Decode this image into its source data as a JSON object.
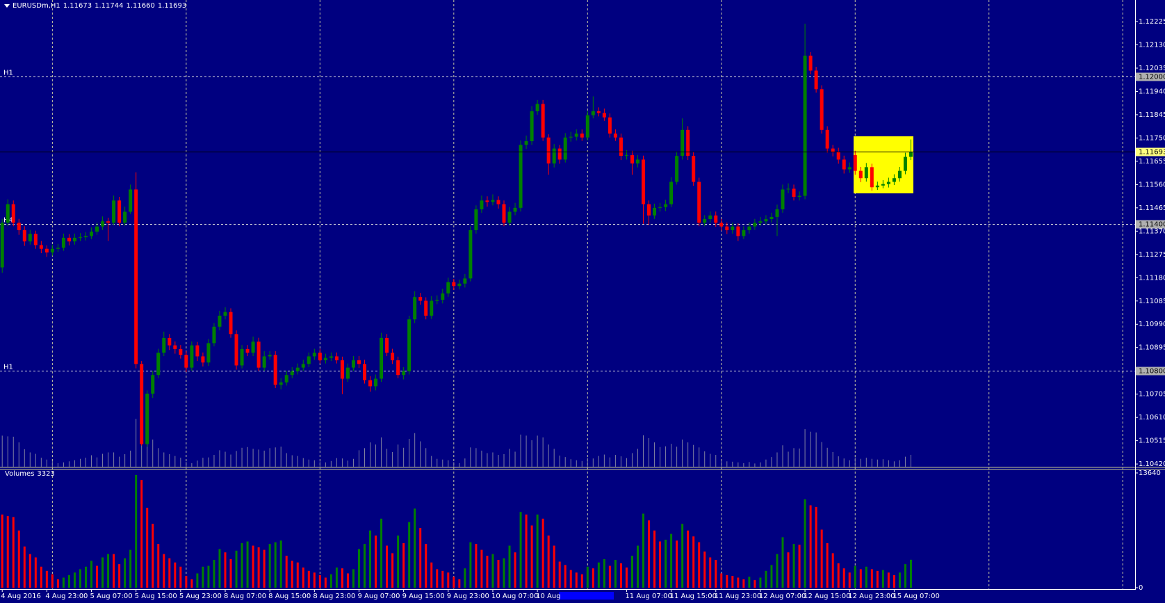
{
  "chart_data": [
    {
      "type": "candlestick",
      "symbol": "EURUSDm,H1",
      "quote": [
        "1.11673",
        "1.11744",
        "1.11660",
        "1.11693"
      ],
      "categories": [
        "4 Aug 2016",
        null,
        null,
        null,
        null,
        null,
        null,
        null,
        "4 Aug 23:00",
        null,
        null,
        null,
        null,
        null,
        null,
        null,
        "5 Aug 07:00",
        null,
        null,
        null,
        null,
        null,
        null,
        null,
        "5 Aug 15:00",
        null,
        null,
        null,
        null,
        null,
        null,
        null,
        "5 Aug 23:00",
        null,
        null,
        null,
        null,
        null,
        null,
        null,
        "8 Aug 07:00",
        null,
        null,
        null,
        null,
        null,
        null,
        null,
        "8 Aug 15:00",
        null,
        null,
        null,
        null,
        null,
        null,
        null,
        "8 Aug 23:00",
        null,
        null,
        null,
        null,
        null,
        null,
        null,
        "9 Aug 07:00",
        null,
        null,
        null,
        null,
        null,
        null,
        null,
        "9 Aug 15:00",
        null,
        null,
        null,
        null,
        null,
        null,
        null,
        "9 Aug 23:00",
        null,
        null,
        null,
        null,
        null,
        null,
        null,
        "10 Aug 07:00",
        null,
        null,
        null,
        null,
        null,
        null,
        null,
        "10 Aug",
        null,
        null,
        null,
        null,
        null,
        null,
        null,
        null,
        null,
        null,
        null,
        null,
        null,
        null,
        null,
        "11 Aug 07:00",
        null,
        null,
        null,
        null,
        null,
        null,
        null,
        "11 Aug 15:00",
        null,
        null,
        null,
        null,
        null,
        null,
        null,
        "11 Aug 23:00",
        null,
        null,
        null,
        null,
        null,
        null,
        null,
        "12 Aug 07:00",
        null,
        null,
        null,
        null,
        null,
        null,
        null,
        "12 Aug 15:00",
        null,
        null,
        null,
        null,
        null,
        null,
        null,
        "12 Aug 23:00",
        null,
        null,
        null,
        null,
        null,
        null,
        null,
        "15 Aug 07:00",
        null,
        null,
        null
      ],
      "open": [
        1.11222,
        1.11404,
        1.1148,
        1.11404,
        1.11374,
        1.11328,
        1.11359,
        1.11313,
        1.11298,
        1.11283,
        1.11298,
        1.11302,
        1.11343,
        1.11328,
        1.11343,
        1.11345,
        1.1135,
        1.11368,
        1.11389,
        1.1141,
        1.11404,
        1.11495,
        1.11404,
        1.11449,
        1.1154,
        1.10828,
        1.10501,
        1.10707,
        1.10783,
        1.10874,
        1.10934,
        1.10904,
        1.10889,
        1.10865,
        1.10813,
        1.10904,
        1.10859,
        1.10834,
        1.10913,
        1.1098,
        1.11025,
        1.1104,
        1.1095,
        1.10822,
        1.10889,
        1.10874,
        1.10919,
        1.10813,
        1.10859,
        1.10865,
        1.10743,
        1.10753,
        1.10783,
        1.10798,
        1.10813,
        1.10828,
        1.10859,
        1.10874,
        1.10843,
        1.10853,
        1.10859,
        1.10843,
        1.10768,
        1.10813,
        1.10843,
        1.10828,
        1.10762,
        1.10737,
        1.10768,
        1.10934,
        1.10874,
        1.10843,
        1.10783,
        1.10798,
        1.1101,
        1.11101,
        1.11086,
        1.11025,
        1.11086,
        1.1109,
        1.11116,
        1.11162,
        1.11146,
        1.11156,
        1.11177,
        1.11374,
        1.11459,
        1.11495,
        1.11489,
        1.11497,
        1.1148,
        1.11404,
        1.11449,
        1.11465,
        1.11722,
        1.11737,
        1.11859,
        1.11889,
        1.11752,
        1.11646,
        1.11707,
        1.11662,
        1.11752,
        1.11755,
        1.11768,
        1.11752,
        1.11843,
        1.11859,
        1.11852,
        1.11834,
        1.11768,
        1.11752,
        1.11677,
        1.1168,
        1.11646,
        1.11662,
        1.1148,
        1.11434,
        1.11465,
        1.11468,
        1.1148,
        1.11571,
        1.11677,
        1.11783,
        1.11677,
        1.11571,
        1.11404,
        1.11419,
        1.11434,
        1.11404,
        1.11389,
        1.11374,
        1.11389,
        1.1135,
        1.11374,
        1.11389,
        1.11404,
        1.1141,
        1.11419,
        1.11428,
        1.11459,
        1.1154,
        1.11543,
        1.1151,
        1.11514,
        1.12086,
        1.12025,
        1.11949,
        1.11783,
        1.11707,
        1.11692,
        1.11662,
        1.11622,
        1.1168,
        1.11616,
        1.11586,
        1.11631,
        1.11549,
        1.11556,
        1.11562,
        1.11571,
        1.11586,
        1.11616,
        1.11673
      ],
      "high": [
        1.1142,
        1.115,
        1.11495,
        1.1142,
        1.1139,
        1.11375,
        1.11372,
        1.1133,
        1.11312,
        1.11315,
        1.11318,
        1.1136,
        1.11358,
        1.1136,
        1.11362,
        1.11366,
        1.11385,
        1.11405,
        1.1143,
        1.11425,
        1.11515,
        1.1151,
        1.1147,
        1.1156,
        1.1161,
        1.1084,
        1.1072,
        1.108,
        1.1089,
        1.1096,
        1.1095,
        1.1092,
        1.10905,
        1.1088,
        1.1092,
        1.10918,
        1.10875,
        1.1093,
        1.10995,
        1.11045,
        1.1106,
        1.11055,
        1.10965,
        1.10905,
        1.10905,
        1.1094,
        1.10935,
        1.1088,
        1.1088,
        1.1088,
        1.1077,
        1.108,
        1.10815,
        1.1083,
        1.10845,
        1.10875,
        1.1089,
        1.1089,
        1.1087,
        1.10875,
        1.10875,
        1.10858,
        1.1083,
        1.1086,
        1.1086,
        1.10845,
        1.10778,
        1.10785,
        1.10955,
        1.1095,
        1.1089,
        1.10858,
        1.10815,
        1.11025,
        1.11125,
        1.11118,
        1.111,
        1.11105,
        1.11108,
        1.11135,
        1.1118,
        1.11175,
        1.11172,
        1.11195,
        1.1139,
        1.11475,
        1.11515,
        1.11512,
        1.1152,
        1.11512,
        1.11495,
        1.11468,
        1.11485,
        1.1174,
        1.1176,
        1.1188,
        1.11905,
        1.11905,
        1.11765,
        1.11725,
        1.11722,
        1.1177,
        1.11775,
        1.11785,
        1.11785,
        1.1186,
        1.1192,
        1.11875,
        1.1187,
        1.1185,
        1.11785,
        1.11768,
        1.117,
        1.11698,
        1.1168,
        1.11678,
        1.11495,
        1.11482,
        1.11485,
        1.11498,
        1.1159,
        1.11695,
        1.1183,
        1.11798,
        1.11692,
        1.11588,
        1.11435,
        1.1145,
        1.1145,
        1.1142,
        1.11405,
        1.11405,
        1.11402,
        1.1139,
        1.11405,
        1.1142,
        1.11428,
        1.11435,
        1.11445,
        1.11478,
        1.1156,
        1.11565,
        1.1156,
        1.11532,
        1.12216,
        1.121,
        1.1204,
        1.11965,
        1.11798,
        1.11722,
        1.1171,
        1.11678,
        1.1165,
        1.11698,
        1.11632,
        1.11648,
        1.11645,
        1.11572,
        1.11578,
        1.11588,
        1.11602,
        1.11632,
        1.1169,
        1.11744
      ],
      "low": [
        1.112,
        1.1139,
        1.1139,
        1.11355,
        1.1131,
        1.11315,
        1.11298,
        1.1128,
        1.11265,
        1.1127,
        1.11285,
        1.1129,
        1.11312,
        1.11315,
        1.1133,
        1.11332,
        1.11338,
        1.11355,
        1.11375,
        1.1133,
        1.11395,
        1.1139,
        1.11392,
        1.1144,
        1.1081,
        1.10495,
        1.1049,
        1.1069,
        1.1077,
        1.1086,
        1.10885,
        1.1087,
        1.1085,
        1.10795,
        1.108,
        1.1084,
        1.10818,
        1.1082,
        1.109,
        1.10965,
        1.1101,
        1.10935,
        1.10805,
        1.1081,
        1.1086,
        1.1086,
        1.108,
        1.108,
        1.10845,
        1.1073,
        1.10725,
        1.1074,
        1.1077,
        1.10785,
        1.108,
        1.10815,
        1.10845,
        1.1083,
        1.1083,
        1.1084,
        1.1083,
        1.10705,
        1.10755,
        1.108,
        1.10812,
        1.10748,
        1.10715,
        1.1072,
        1.10755,
        1.1086,
        1.10828,
        1.1077,
        1.10765,
        1.10785,
        1.10995,
        1.1107,
        1.1101,
        1.11012,
        1.11072,
        1.11075,
        1.11102,
        1.1113,
        1.11132,
        1.1114,
        1.11165,
        1.1136,
        1.11445,
        1.1147,
        1.11475,
        1.11462,
        1.1139,
        1.11392,
        1.11435,
        1.1145,
        1.11705,
        1.11722,
        1.11845,
        1.11738,
        1.116,
        1.1163,
        1.11645,
        1.1165,
        1.11735,
        1.1174,
        1.11738,
        1.1174,
        1.1183,
        1.11838,
        1.1182,
        1.11752,
        1.11738,
        1.1166,
        1.11662,
        1.116,
        1.1163,
        1.114,
        1.11395,
        1.1142,
        1.1145,
        1.11452,
        1.11468,
        1.1156,
        1.11662,
        1.1166,
        1.11555,
        1.1139,
        1.1139,
        1.11405,
        1.11388,
        1.11372,
        1.11358,
        1.1136,
        1.1133,
        1.11338,
        1.1136,
        1.11375,
        1.11392,
        1.11398,
        1.11405,
        1.1135,
        1.11445,
        1.11525,
        1.11495,
        1.11495,
        1.115,
        1.1201,
        1.11935,
        1.11768,
        1.1169,
        1.11675,
        1.11645,
        1.11605,
        1.11608,
        1.116,
        1.1157,
        1.11572,
        1.11535,
        1.11538,
        1.11545,
        1.11548,
        1.11558,
        1.11572,
        1.11602,
        1.1166
      ],
      "close": [
        1.11404,
        1.1148,
        1.11404,
        1.11374,
        1.11328,
        1.11359,
        1.11313,
        1.11298,
        1.11283,
        1.11298,
        1.11302,
        1.11343,
        1.11328,
        1.11343,
        1.11345,
        1.1135,
        1.11368,
        1.11389,
        1.1141,
        1.11404,
        1.11495,
        1.11404,
        1.11449,
        1.1154,
        1.10828,
        1.10501,
        1.10707,
        1.10783,
        1.10874,
        1.10934,
        1.10904,
        1.10889,
        1.10865,
        1.10813,
        1.10904,
        1.10859,
        1.10834,
        1.10913,
        1.1098,
        1.11025,
        1.1104,
        1.1095,
        1.10822,
        1.10889,
        1.10874,
        1.10919,
        1.10813,
        1.10859,
        1.10865,
        1.10743,
        1.10753,
        1.10783,
        1.10798,
        1.10813,
        1.10828,
        1.10859,
        1.10874,
        1.10843,
        1.10853,
        1.10859,
        1.10843,
        1.10768,
        1.10813,
        1.10843,
        1.10828,
        1.10762,
        1.10737,
        1.10768,
        1.10934,
        1.10874,
        1.10843,
        1.10783,
        1.10798,
        1.1101,
        1.11101,
        1.11086,
        1.11025,
        1.11086,
        1.1109,
        1.11116,
        1.11162,
        1.11146,
        1.11156,
        1.11177,
        1.11374,
        1.11459,
        1.11495,
        1.11489,
        1.11497,
        1.1148,
        1.11404,
        1.11449,
        1.11465,
        1.11722,
        1.11737,
        1.11859,
        1.11889,
        1.11752,
        1.11646,
        1.11707,
        1.11662,
        1.11752,
        1.11755,
        1.11768,
        1.11752,
        1.11843,
        1.11859,
        1.11852,
        1.11834,
        1.11768,
        1.11752,
        1.11677,
        1.1168,
        1.11646,
        1.11662,
        1.1148,
        1.11434,
        1.11465,
        1.11468,
        1.1148,
        1.11571,
        1.11677,
        1.11783,
        1.11677,
        1.11571,
        1.11404,
        1.11419,
        1.11434,
        1.11404,
        1.11389,
        1.11374,
        1.11389,
        1.1135,
        1.11374,
        1.11389,
        1.11404,
        1.1141,
        1.11419,
        1.11428,
        1.11459,
        1.1154,
        1.11543,
        1.1151,
        1.11514,
        1.12086,
        1.12025,
        1.11949,
        1.11783,
        1.11707,
        1.11692,
        1.11662,
        1.11622,
        1.11631,
        1.11616,
        1.11586,
        1.11631,
        1.11549,
        1.11556,
        1.11562,
        1.11571,
        1.11586,
        1.11616,
        1.11673,
        1.11693
      ],
      "up_color": "#008000",
      "down_color": "#ff0000",
      "ylim": [
        1.10409,
        1.12313
      ],
      "yticks": [
        1.12225,
        {
          "value": 1.1213,
          "label": "1.12130"
        },
        1.12035,
        {
          "value": 1.1194,
          "label": "1.11940"
        },
        1.11845,
        {
          "value": 1.1175,
          "label": "1.11750"
        },
        1.11655,
        {
          "value": 1.1156,
          "label": "1.11560"
        },
        1.11465,
        {
          "value": 1.1137,
          "label": "1.11370"
        },
        1.11275,
        {
          "value": 1.1118,
          "label": "1.11180"
        },
        1.11085,
        {
          "value": 1.1099,
          "label": "1.10990"
        },
        1.10895,
        1.10705,
        {
          "value": 1.1061,
          "label": "1.10610"
        },
        1.10515,
        {
          "value": 1.1042,
          "label": "1.10420"
        }
      ],
      "levels": [
        {
          "name": "H1",
          "value": 1.12,
          "label": "1.12000"
        },
        {
          "name": "H4",
          "value": 1.114,
          "label": "1.11400"
        },
        {
          "name": "H1",
          "value": 1.108,
          "label": "1.10800"
        }
      ],
      "grid": true
    },
    {
      "type": "volume",
      "title": "Volumes",
      "values": [
        8700,
        8500,
        8400,
        6800,
        4900,
        4000,
        3600,
        2500,
        2000,
        1600,
        1000,
        1200,
        1500,
        1800,
        2200,
        2500,
        3200,
        2600,
        3600,
        4000,
        4000,
        2800,
        3500,
        4500,
        13400,
        12800,
        9500,
        7600,
        5200,
        4000,
        3500,
        3000,
        2500,
        1400,
        1000,
        1700,
        2500,
        2600,
        3300,
        4600,
        4200,
        3400,
        4400,
        5300,
        5500,
        5000,
        4800,
        4500,
        5200,
        5400,
        5600,
        3800,
        3200,
        3000,
        2400,
        2000,
        1800,
        1500,
        1200,
        1600,
        2400,
        2300,
        1700,
        2200,
        4600,
        5200,
        6800,
        6200,
        8200,
        5000,
        4100,
        6200,
        5300,
        7800,
        9400,
        7100,
        5200,
        3000,
        2200,
        2000,
        1800,
        1300,
        1000,
        2300,
        5400,
        5200,
        4500,
        3800,
        4000,
        3300,
        3500,
        5000,
        4200,
        9000,
        8700,
        7400,
        8700,
        8200,
        6200,
        5000,
        3100,
        2700,
        2100,
        1800,
        1600,
        2500,
        2300,
        3000,
        3400,
        2600,
        3300,
        2900,
        2400,
        3800,
        5000,
        8800,
        8000,
        6800,
        5500,
        5700,
        6400,
        5600,
        7600,
        6800,
        6100,
        5400,
        4300,
        3600,
        3300,
        1700,
        1500,
        1400,
        1200,
        1000,
        1300,
        900,
        1200,
        2000,
        2700,
        4000,
        6000,
        4200,
        5200,
        5100,
        10500,
        9800,
        9600,
        6900,
        5300,
        4100,
        2900,
        2300,
        1800,
        2600,
        2200,
        2500,
        2200,
        2000,
        2100,
        1800,
        1500,
        1800,
        2800,
        3323
      ],
      "up_color": "#008000",
      "down_color": "#ff0000",
      "ylim": [
        0,
        13640
      ],
      "yticks": [
        13640,
        0
      ]
    }
  ]
}
